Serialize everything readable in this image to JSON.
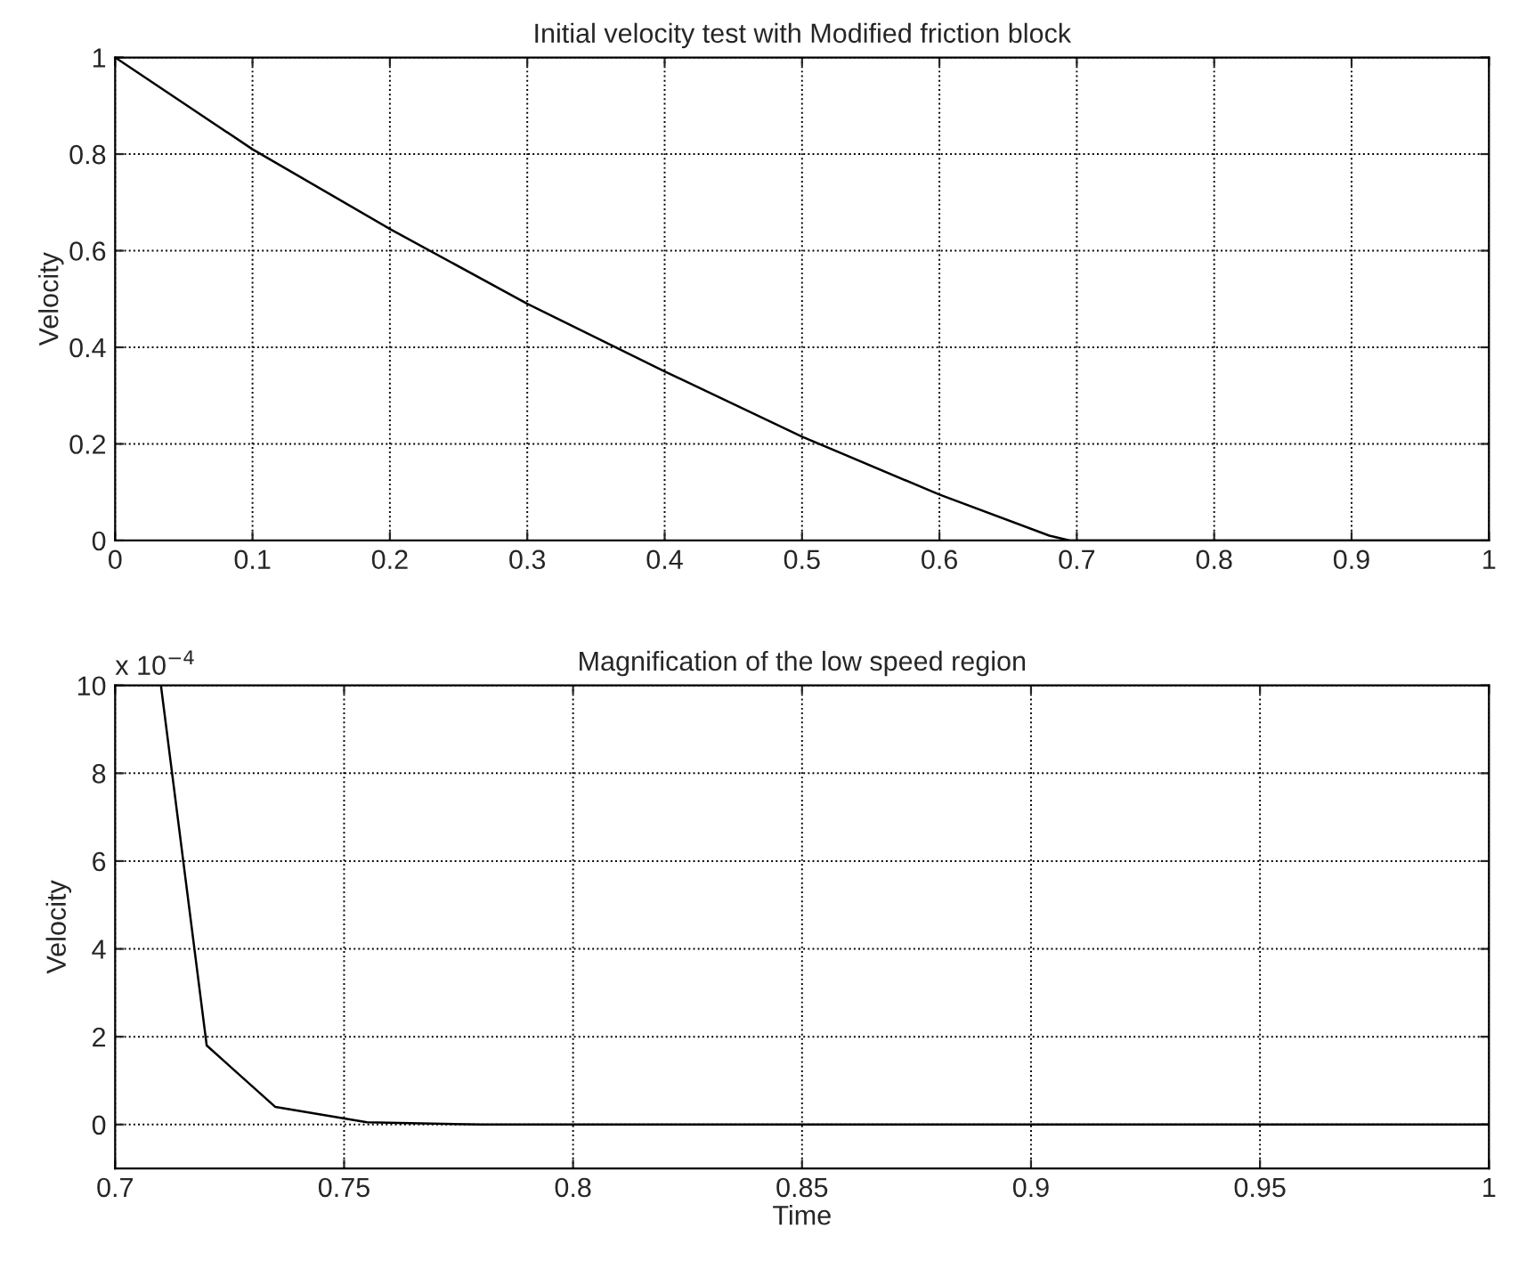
{
  "chart_data": [
    {
      "type": "line",
      "title": "Initial velocity test with Modified friction block",
      "ylabel": "Velocity",
      "x": [
        0,
        0.1,
        0.2,
        0.3,
        0.4,
        0.5,
        0.6,
        0.68,
        0.695,
        0.8,
        0.9,
        1
      ],
      "series": [
        {
          "color": "#000000",
          "values": [
            1,
            0.81,
            0.645,
            0.49,
            0.35,
            0.215,
            0.095,
            0.01,
            0,
            0,
            0,
            0
          ]
        }
      ],
      "xlim": [
        0,
        1
      ],
      "xticks": [
        0,
        0.1,
        0.2,
        0.3,
        0.4,
        0.5,
        0.6,
        0.7,
        0.8,
        0.9,
        1
      ],
      "ylim": [
        0,
        1
      ],
      "yticks": [
        0,
        0.2,
        0.4,
        0.6,
        0.8,
        1
      ],
      "grid": true,
      "line_style": "solid"
    },
    {
      "type": "line",
      "title": "Magnification of the low speed region",
      "xlabel": "Time",
      "ylabel": "Velocity",
      "annotations": [
        "x 10$^{−4}$"
      ],
      "x": [
        0.71,
        0.72,
        0.735,
        0.755,
        0.78,
        0.85,
        0.9,
        1
      ],
      "series": [
        {
          "color": "#000000",
          "values": [
            10,
            1.8,
            0.4,
            0.05,
            0,
            0,
            0,
            0
          ]
        }
      ],
      "xlim": [
        0.7,
        1
      ],
      "xticks": [
        0.7,
        0.75,
        0.8,
        0.85,
        0.9,
        0.95,
        1
      ],
      "ylim": [
        -1,
        10
      ],
      "yticks": [
        0,
        2,
        4,
        6,
        8,
        10
      ],
      "grid": true,
      "line_style": "solid"
    }
  ]
}
